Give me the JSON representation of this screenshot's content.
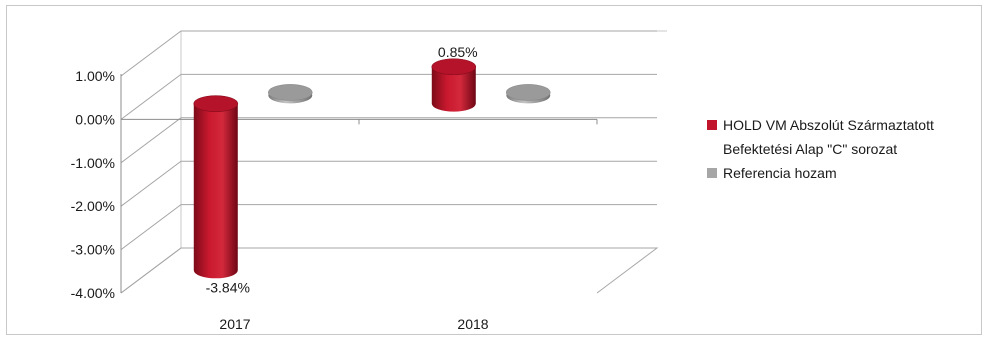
{
  "chart_data": {
    "type": "bar",
    "style": "3d-cylinder",
    "title": "",
    "xlabel": "",
    "ylabel": "",
    "categories": [
      "2017",
      "2018"
    ],
    "series": [
      {
        "name": "HOLD VM Abszolút Származtatott Befektetési Alap \"C\" sorozat",
        "values": [
          -3.84,
          0.85
        ],
        "color": "#c0152a"
      },
      {
        "name": "Referencia hozam",
        "values": [
          0.0,
          0.0
        ],
        "color": "#a6a6a6"
      }
    ],
    "data_labels": [
      {
        "series": 0,
        "index": 0,
        "text": "-3.84%"
      },
      {
        "series": 0,
        "index": 1,
        "text": "0.85%"
      }
    ],
    "ylim": [
      -4.0,
      1.0
    ],
    "yticks": [
      "1.00%",
      "0.00%",
      "-1.00%",
      "-2.00%",
      "-3.00%",
      "-4.00%"
    ],
    "ytick_values": [
      1,
      0,
      -1,
      -2,
      -3,
      -4
    ],
    "grid": true,
    "legend_position": "right",
    "legend_lines": [
      {
        "series": 0,
        "lines": [
          "HOLD VM Abszolút Származtatott",
          "Befektetési Alap \"C\" sorozat"
        ]
      },
      {
        "series": 1,
        "lines": [
          "Referencia hozam"
        ]
      }
    ]
  }
}
